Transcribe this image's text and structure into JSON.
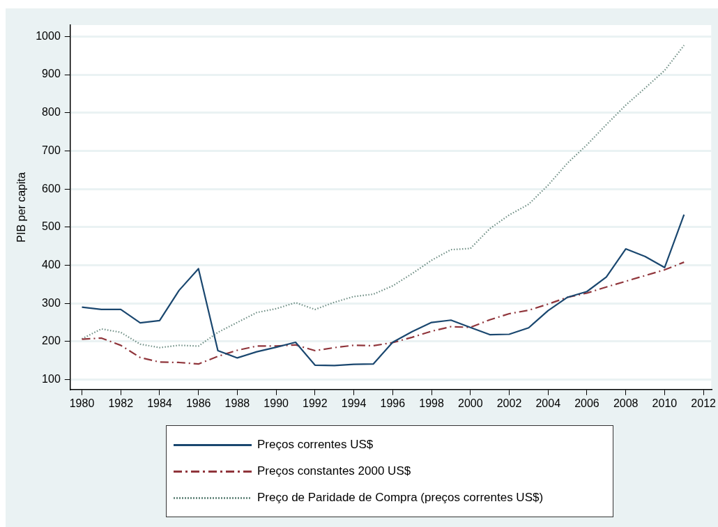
{
  "chart_data": {
    "type": "line",
    "ylabel": "PIB per capita",
    "x": [
      1980,
      1981,
      1982,
      1983,
      1984,
      1985,
      1986,
      1987,
      1988,
      1989,
      1990,
      1991,
      1992,
      1993,
      1994,
      1995,
      1996,
      1997,
      1998,
      1999,
      2000,
      2001,
      2002,
      2003,
      2004,
      2005,
      2006,
      2007,
      2008,
      2009,
      2010,
      2011
    ],
    "xlim": [
      1979.4,
      2012.4
    ],
    "xticks": [
      1980,
      1982,
      1984,
      1986,
      1988,
      1990,
      1992,
      1994,
      1996,
      1998,
      2000,
      2002,
      2004,
      2006,
      2008,
      2010,
      2012
    ],
    "ylim": [
      74,
      1030
    ],
    "yticks": [
      100,
      200,
      300,
      400,
      500,
      600,
      700,
      800,
      900,
      1000
    ],
    "grid": "y",
    "legend": "bottom",
    "marker": "none",
    "series": [
      {
        "name": "Preços correntes US$",
        "color": "#1a476f",
        "line_style": "solid",
        "values": [
          290,
          284,
          284,
          249,
          255,
          334,
          391,
          176,
          157,
          173,
          185,
          198,
          138,
          137,
          140,
          141,
          198,
          226,
          250,
          256,
          237,
          218,
          219,
          236,
          281,
          316,
          331,
          369,
          443,
          423,
          394,
          533
        ]
      },
      {
        "name": "Preços constantes 2000 US$",
        "color": "#90353b",
        "line_style": "dashdot",
        "values": [
          206,
          209,
          190,
          158,
          146,
          145,
          141,
          161,
          177,
          188,
          188,
          191,
          176,
          184,
          190,
          189,
          197,
          211,
          227,
          239,
          237,
          257,
          273,
          282,
          298,
          316,
          327,
          343,
          358,
          373,
          388,
          408
        ]
      },
      {
        "name": "Preço de Paridade de Compra (preços correntes US$)",
        "color": "#6e8e84",
        "line_style": "dotted",
        "values": [
          207,
          233,
          224,
          193,
          184,
          190,
          188,
          224,
          250,
          276,
          286,
          302,
          284,
          303,
          318,
          324,
          346,
          378,
          413,
          441,
          444,
          496,
          532,
          560,
          610,
          668,
          716,
          769,
          820,
          865,
          911,
          977
        ]
      }
    ]
  }
}
